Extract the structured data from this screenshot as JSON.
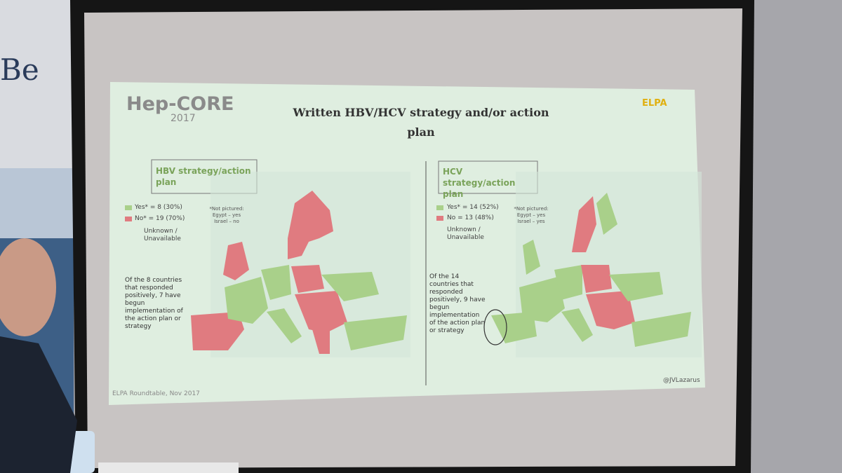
{
  "banner": {
    "text": "Be"
  },
  "slide": {
    "logo": {
      "name": "Hep-CORE",
      "year": "2017"
    },
    "title": "Written HBV/HCV strategy and/or action plan",
    "partner_logo": "ELPA",
    "panels": [
      {
        "heading": "HBV strategy/action plan",
        "legend": [
          "Yes* = 8 (30%)",
          "No* = 19 (70%)",
          "Unknown / Unavailable"
        ],
        "note": {
          "title": "*Not pictured:",
          "items": [
            "Egypt – yes",
            "Israel – no"
          ]
        },
        "summary": "Of the 8 countries that responded positively, 7 have begun implementation of the action plan or strategy"
      },
      {
        "heading": "HCV strategy/action plan",
        "legend": [
          "Yes* = 14 (52%)",
          "No = 13 (48%)",
          "Unknown / Unavailable"
        ],
        "note": {
          "title": "*Not pictured:",
          "items": [
            "Egypt – yes",
            "Israel – yes"
          ]
        },
        "summary": "Of the 14 countries that responded positively, 9 have begun implementation of the action plan or strategy"
      }
    ],
    "footer_left": "ELPA Roundtable, Nov 2017",
    "footer_right": "@JVLazarus"
  }
}
